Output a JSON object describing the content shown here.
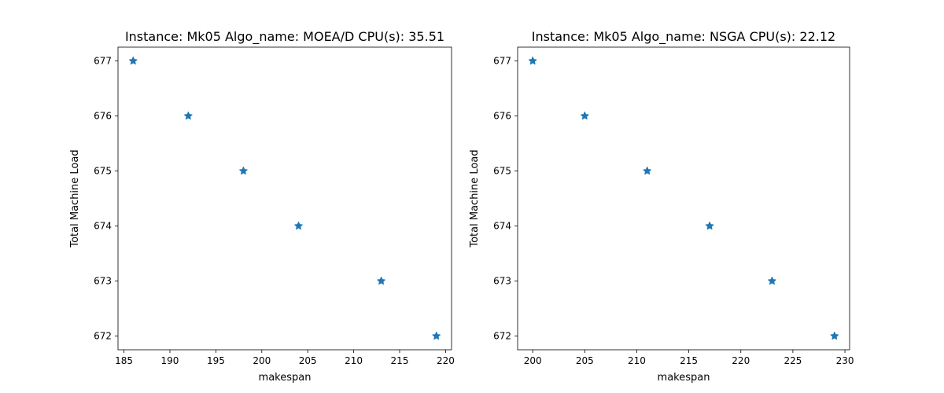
{
  "chart_data": [
    {
      "type": "scatter",
      "title": "Instance: Mk05 Algo_name: MOEA/D CPU(s): 35.51",
      "xlabel": "makespan",
      "ylabel": "Total Machine Load",
      "x": [
        186,
        192,
        198,
        204,
        213,
        219
      ],
      "y": [
        677,
        676,
        675,
        674,
        673,
        672
      ],
      "xlim": [
        184.35,
        220.65
      ],
      "ylim": [
        671.75,
        677.25
      ],
      "xticks": [
        185,
        190,
        195,
        200,
        205,
        210,
        215,
        220
      ],
      "yticks": [
        672,
        673,
        674,
        675,
        676,
        677
      ],
      "marker": "star",
      "color": "#1f77b4",
      "grid": false,
      "legend": "none"
    },
    {
      "type": "scatter",
      "title": "Instance: Mk05 Algo_name: NSGA CPU(s): 22.12",
      "xlabel": "makespan",
      "ylabel": "Total Machine Load",
      "x": [
        200,
        205,
        211,
        217,
        223,
        229
      ],
      "y": [
        677,
        676,
        675,
        674,
        673,
        672
      ],
      "xlim": [
        198.55,
        230.45
      ],
      "ylim": [
        671.75,
        677.25
      ],
      "xticks": [
        200,
        205,
        210,
        215,
        220,
        225,
        230
      ],
      "yticks": [
        672,
        673,
        674,
        675,
        676,
        677
      ],
      "marker": "star",
      "color": "#1f77b4",
      "grid": false,
      "legend": "none"
    }
  ]
}
